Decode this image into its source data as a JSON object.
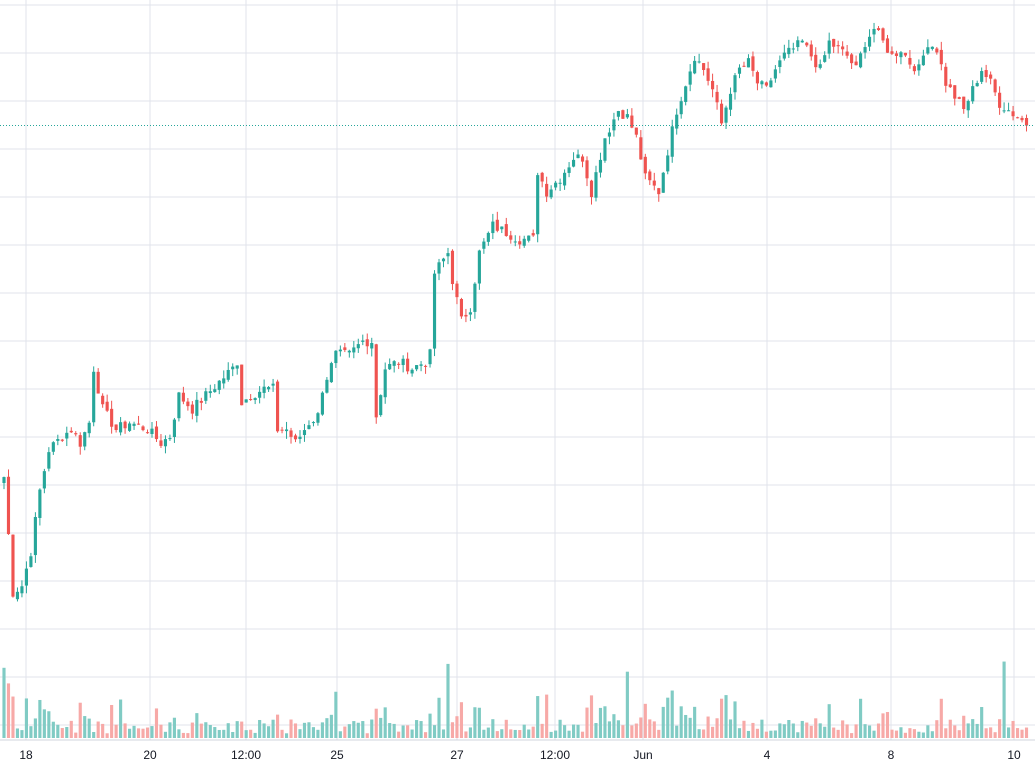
{
  "chart_data": {
    "type": "candlestick",
    "title": "",
    "xlabel": "",
    "ylabel": "",
    "grid": true,
    "x_tick_labels": [
      "18",
      "20",
      "12:00",
      "25",
      "27",
      "12:00",
      "Jun",
      "4",
      "8",
      "10"
    ],
    "colors": {
      "up": "#26a69a",
      "down": "#ef5350",
      "volume_up": "#80cbc4",
      "volume_down": "#f7a9a7",
      "grid": "#e0e3eb",
      "last_price_line": "#26a69a",
      "axis_text": "#131722"
    },
    "price_range": [
      0,
      100
    ],
    "volume_range": [
      0,
      100
    ],
    "last_price": 81.6,
    "series": [
      {
        "name": "price",
        "anchors": [
          [
            0,
            64
          ],
          [
            2,
            47
          ],
          [
            4,
            48
          ],
          [
            6,
            53
          ],
          [
            8,
            62
          ],
          [
            10,
            68
          ],
          [
            13,
            70
          ],
          [
            15,
            71
          ],
          [
            17,
            69
          ],
          [
            19,
            72
          ],
          [
            20,
            80
          ],
          [
            22,
            74
          ],
          [
            25,
            71
          ],
          [
            28,
            72
          ],
          [
            32,
            71
          ],
          [
            35,
            69
          ],
          [
            37,
            70
          ],
          [
            39,
            76
          ],
          [
            42,
            74
          ],
          [
            45,
            76
          ],
          [
            48,
            78
          ],
          [
            51,
            80
          ],
          [
            52,
            81
          ],
          [
            53,
            75
          ],
          [
            55,
            76
          ],
          [
            58,
            77
          ],
          [
            60,
            77
          ],
          [
            61,
            71
          ],
          [
            63,
            71
          ],
          [
            65,
            69
          ],
          [
            68,
            72
          ],
          [
            70,
            73
          ],
          [
            71,
            77
          ],
          [
            74,
            82
          ],
          [
            77,
            82
          ],
          [
            80,
            84
          ],
          [
            82,
            84
          ],
          [
            83,
            73
          ],
          [
            85,
            80
          ],
          [
            88,
            81
          ],
          [
            91,
            80
          ],
          [
            94,
            81
          ],
          [
            95,
            82
          ],
          [
            96,
            94
          ],
          [
            99,
            97
          ],
          [
            100,
            93
          ],
          [
            102,
            87
          ],
          [
            104,
            89
          ],
          [
            106,
            97
          ],
          [
            109,
            101
          ],
          [
            112,
            100
          ],
          [
            115,
            99
          ],
          [
            118,
            99
          ],
          [
            119,
            109
          ],
          [
            121,
            106
          ],
          [
            124,
            108
          ],
          [
            127,
            111
          ],
          [
            129,
            111
          ],
          [
            131,
            106
          ],
          [
            134,
            114
          ],
          [
            137,
            118
          ],
          [
            139,
            117
          ],
          [
            141,
            114
          ],
          [
            143,
            108
          ],
          [
            146,
            106
          ],
          [
            148,
            112
          ],
          [
            150,
            118
          ],
          [
            152,
            122
          ],
          [
            154,
            126
          ],
          [
            156,
            124
          ],
          [
            158,
            121
          ],
          [
            160,
            116
          ],
          [
            162,
            121
          ],
          [
            164,
            124
          ],
          [
            166,
            125
          ],
          [
            168,
            122
          ],
          [
            170,
            121
          ],
          [
            172,
            124
          ],
          [
            174,
            126
          ],
          [
            176,
            127
          ],
          [
            178,
            128
          ],
          [
            180,
            126
          ],
          [
            182,
            124
          ],
          [
            184,
            128
          ],
          [
            186,
            127
          ],
          [
            188,
            126
          ],
          [
            190,
            124
          ],
          [
            192,
            128
          ],
          [
            194,
            130
          ],
          [
            196,
            128
          ],
          [
            198,
            126
          ],
          [
            200,
            127
          ],
          [
            202,
            125
          ],
          [
            204,
            124
          ],
          [
            206,
            128
          ],
          [
            208,
            127
          ],
          [
            210,
            122
          ],
          [
            212,
            120
          ],
          [
            214,
            118
          ],
          [
            216,
            121
          ],
          [
            218,
            124
          ],
          [
            220,
            122
          ],
          [
            222,
            119
          ],
          [
            224,
            118
          ],
          [
            226,
            117
          ],
          [
            228,
            116
          ]
        ]
      }
    ]
  }
}
